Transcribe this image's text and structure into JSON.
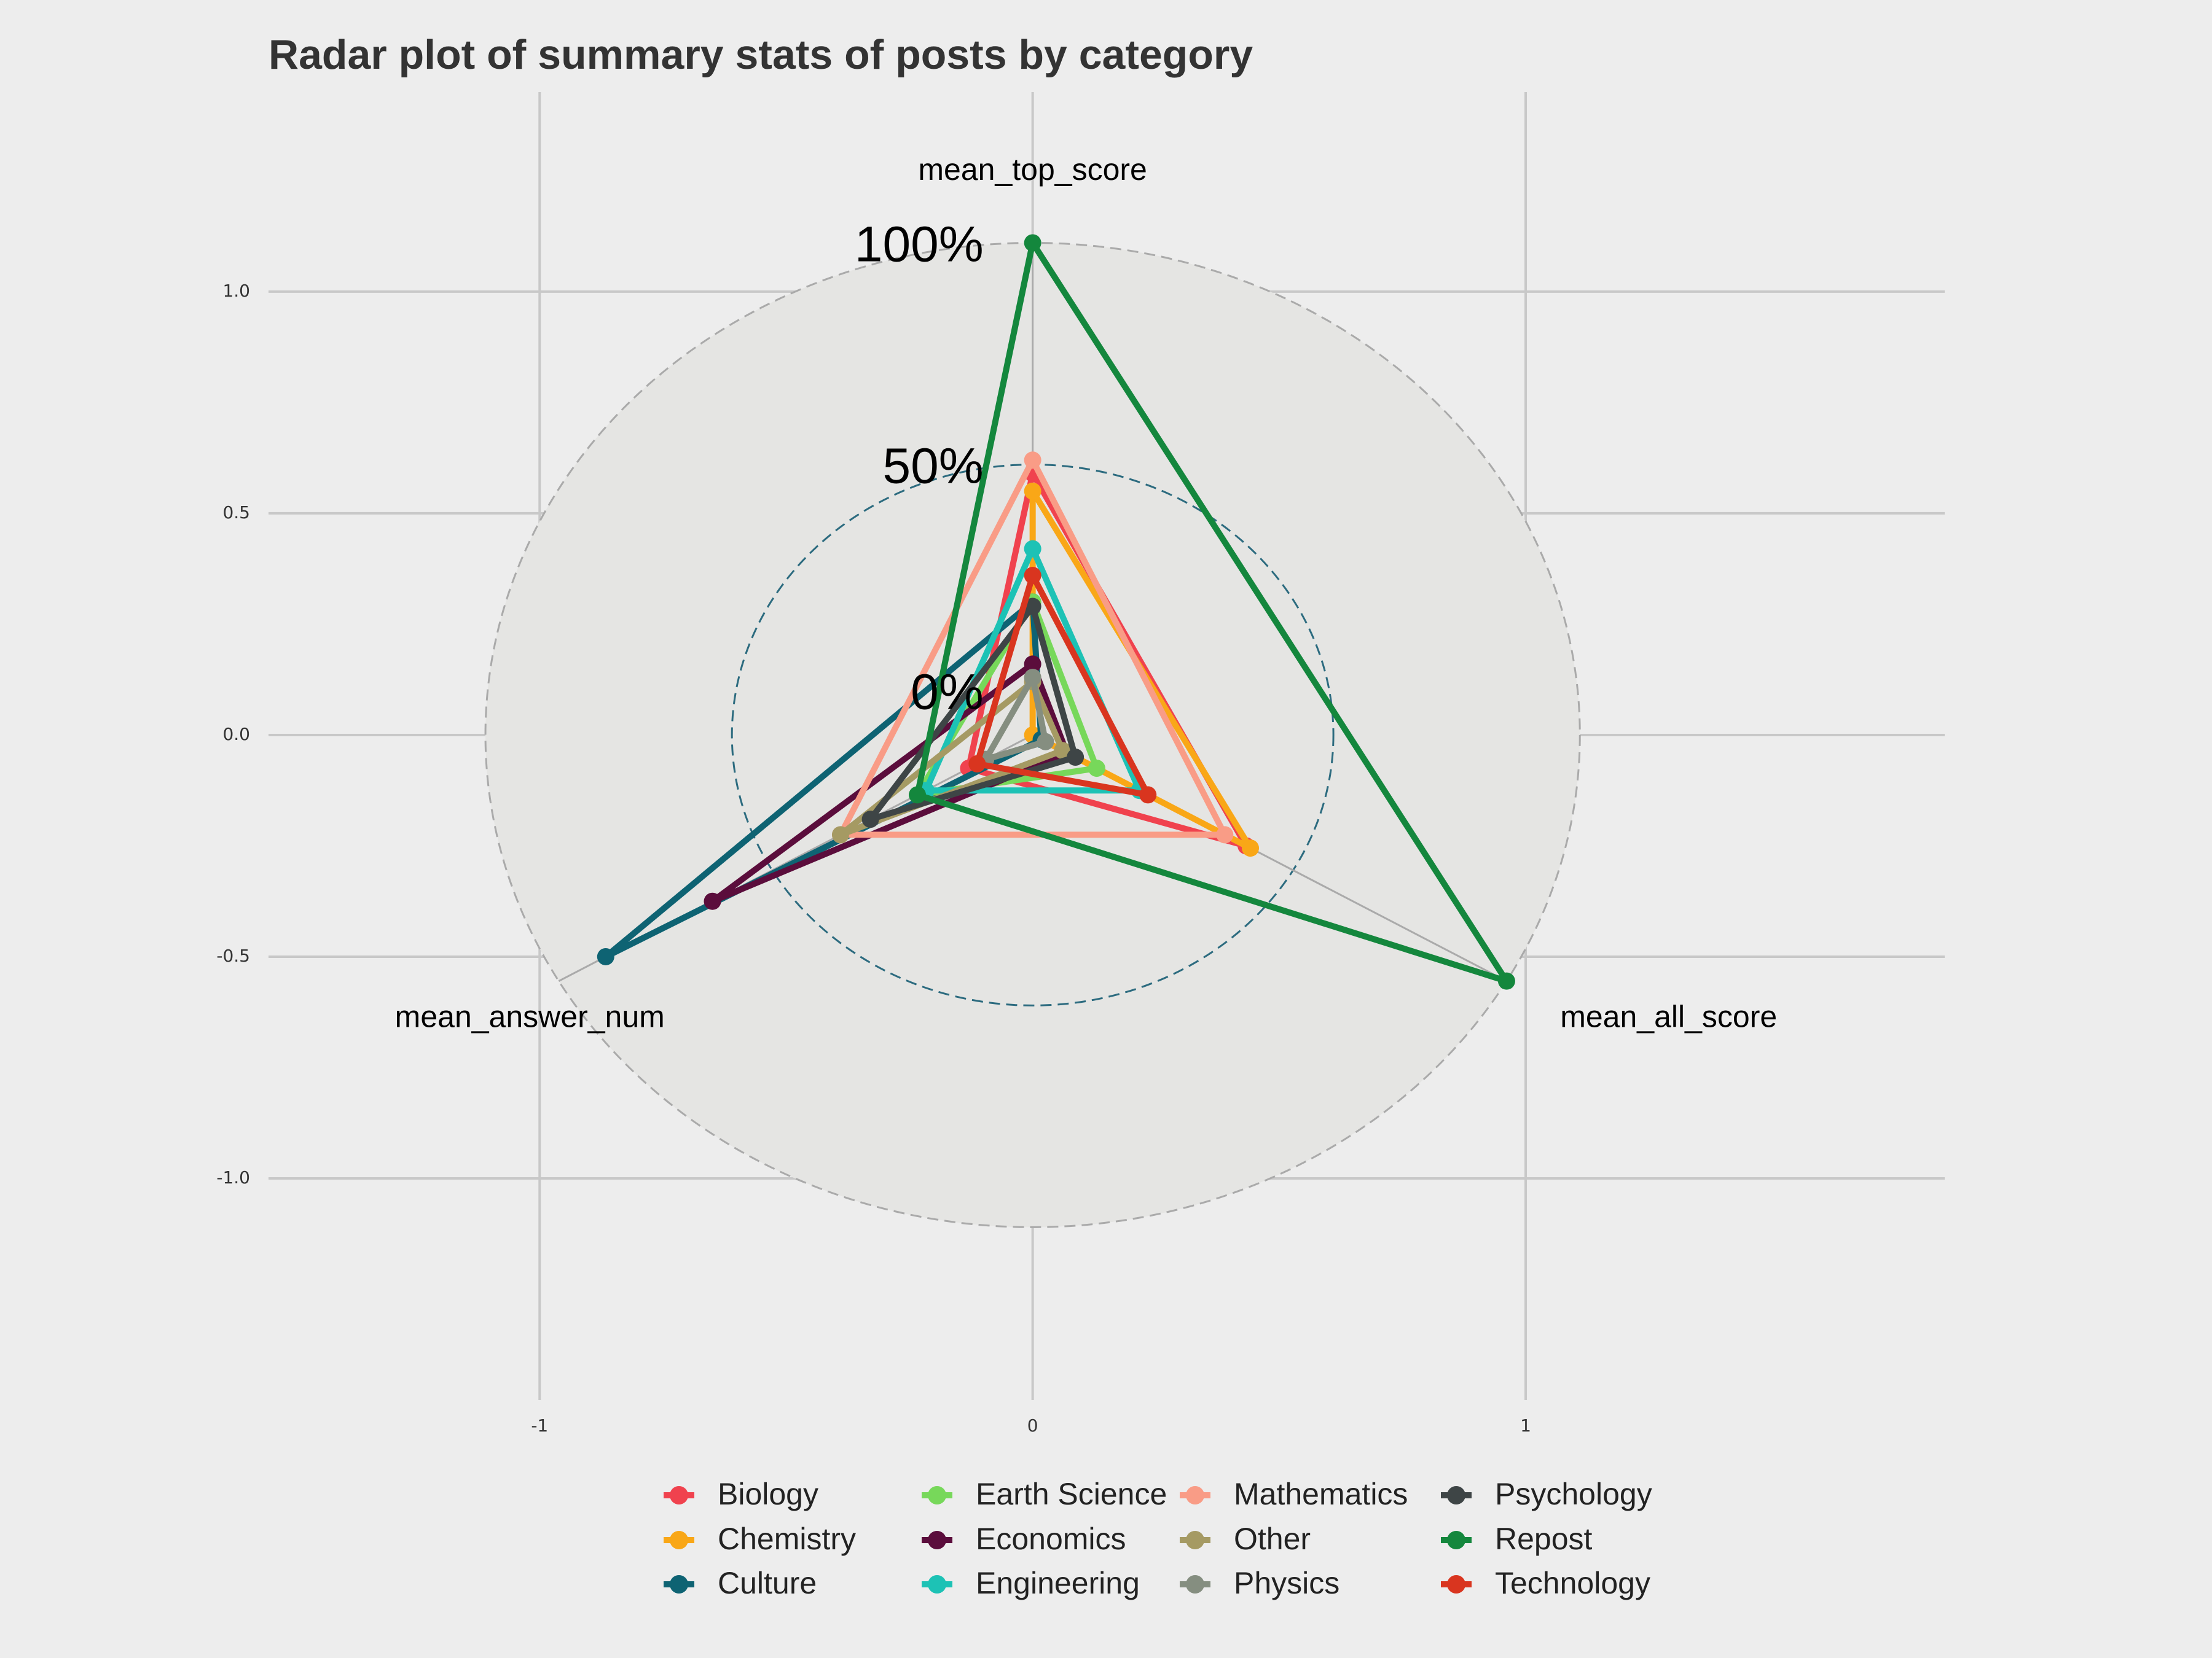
{
  "chart_data": {
    "type": "radar",
    "title": "Radar plot of summary stats of posts by category",
    "axes": [
      "mean_top_score",
      "mean_all_score",
      "mean_answer_num"
    ],
    "grid_labels": [
      "0%",
      "50%",
      "100%"
    ],
    "x_ticks": [
      "-1",
      "0",
      "1"
    ],
    "y_ticks": [
      "1.0",
      "0.5",
      "0.0",
      "-0.5",
      "-1.0"
    ],
    "xlim": [
      -1.55,
      1.85
    ],
    "ylim": [
      -1.5,
      1.45
    ],
    "legend_position": "bottom",
    "grid_colors": {
      "inner": "#2C6B7F",
      "outer": "#AAAAAA",
      "background": "#EDEDED",
      "disc": "#E5E5E3"
    },
    "series": [
      {
        "name": "Biology",
        "color": "#F0424E",
        "values": [
          0.59,
          0.5,
          0.15
        ]
      },
      {
        "name": "Chemistry",
        "color": "#F9A717",
        "values": [
          0.55,
          0.51,
          0.0
        ]
      },
      {
        "name": "Culture",
        "color": "#0E6373",
        "values": [
          0.3,
          0.02,
          1.0
        ]
      },
      {
        "name": "Earth Science",
        "color": "#77D85A",
        "values": [
          0.3,
          0.15,
          0.27
        ]
      },
      {
        "name": "Economics",
        "color": "#5B0D3C",
        "values": [
          0.16,
          0.08,
          0.75
        ]
      },
      {
        "name": "Engineering",
        "color": "#1DC2B5",
        "values": [
          0.42,
          0.25,
          0.25
        ]
      },
      {
        "name": "Mathematics",
        "color": "#F99C86",
        "values": [
          0.62,
          0.45,
          0.45
        ]
      },
      {
        "name": "Other",
        "color": "#A59A63",
        "values": [
          0.12,
          0.07,
          0.45
        ]
      },
      {
        "name": "Physics",
        "color": "#858E80",
        "values": [
          0.13,
          0.03,
          0.11
        ]
      },
      {
        "name": "Psychology",
        "color": "#3E4546",
        "values": [
          0.29,
          0.1,
          0.38
        ]
      },
      {
        "name": "Repost",
        "color": "#14873D",
        "values": [
          1.11,
          1.11,
          0.27
        ]
      },
      {
        "name": "Technology",
        "color": "#D9351F",
        "values": [
          0.36,
          0.27,
          0.13
        ]
      }
    ]
  }
}
